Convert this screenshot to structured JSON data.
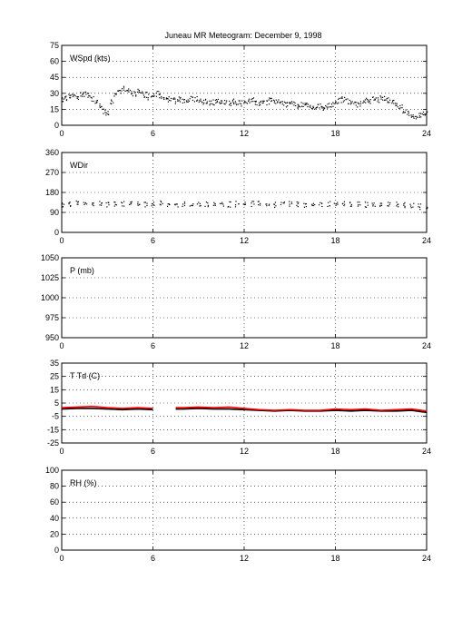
{
  "title": "Juneau MR Meteogram:  December  9, 1998",
  "chart_data": [
    {
      "type": "scatter",
      "label": "WSpd (kts)",
      "xlim": [
        0,
        24
      ],
      "ylim": [
        0,
        75
      ],
      "xticks": [
        0,
        6,
        12,
        18,
        24
      ],
      "yticks": [
        0,
        15,
        30,
        45,
        60,
        75
      ],
      "grid": true,
      "series": [
        {
          "color": "#000000",
          "x": [
            0,
            0.25,
            0.5,
            0.75,
            1,
            1.25,
            1.5,
            1.75,
            2,
            2.25,
            2.5,
            2.75,
            3,
            3.25,
            3.5,
            3.75,
            4,
            4.25,
            4.5,
            4.75,
            5,
            5.25,
            5.5,
            5.75,
            6,
            6.25,
            6.5,
            6.75,
            7,
            7.25,
            7.5,
            7.75,
            8,
            8.25,
            8.5,
            8.75,
            9,
            9.25,
            9.5,
            9.75,
            10,
            10.25,
            10.5,
            10.75,
            11,
            11.25,
            11.5,
            11.75,
            12,
            12.25,
            12.5,
            12.75,
            13,
            13.25,
            13.5,
            13.75,
            14,
            14.25,
            14.5,
            14.75,
            15,
            15.25,
            15.5,
            15.75,
            16,
            16.25,
            16.5,
            16.75,
            17,
            17.25,
            17.5,
            17.75,
            18,
            18.25,
            18.5,
            18.75,
            19,
            19.25,
            19.5,
            19.75,
            20,
            20.25,
            20.5,
            20.75,
            21,
            21.25,
            21.5,
            21.75,
            22,
            22.25,
            22.5,
            22.75,
            23,
            23.25,
            23.5,
            23.75,
            24
          ],
          "y": [
            25,
            26,
            27,
            28,
            26,
            29,
            30,
            28,
            25,
            22,
            18,
            14,
            12,
            22,
            30,
            33,
            35,
            34,
            32,
            30,
            33,
            31,
            29,
            27,
            28,
            30,
            27,
            26,
            25,
            24,
            23,
            25,
            24,
            23,
            26,
            25,
            24,
            22,
            23,
            21,
            22,
            24,
            23,
            22,
            21,
            23,
            22,
            21,
            22,
            23,
            24,
            22,
            21,
            23,
            22,
            24,
            23,
            22,
            21,
            20,
            22,
            21,
            19,
            20,
            21,
            18,
            17,
            19,
            18,
            17,
            19,
            20,
            22,
            24,
            25,
            23,
            22,
            21,
            20,
            22,
            24,
            23,
            25,
            24,
            26,
            25,
            24,
            23,
            20,
            17,
            14,
            12,
            9,
            8,
            10,
            11,
            12
          ]
        }
      ]
    },
    {
      "type": "scatter",
      "label": "WDir",
      "xlim": [
        0,
        24
      ],
      "ylim": [
        0,
        360
      ],
      "xticks": [
        0,
        6,
        12,
        18,
        24
      ],
      "yticks": [
        0,
        90,
        180,
        270,
        360
      ],
      "grid": true,
      "series": [
        {
          "color": "#000000",
          "x": [
            0,
            0.5,
            1,
            1.5,
            2,
            2.5,
            3,
            3.5,
            4,
            4.5,
            5,
            5.5,
            6,
            6.5,
            7,
            7.5,
            8,
            8.5,
            9,
            9.5,
            10,
            10.5,
            11,
            11.5,
            12,
            12.5,
            13,
            13.5,
            14,
            14.5,
            15,
            15.5,
            16,
            16.5,
            17,
            17.5,
            18,
            18.5,
            19,
            19.5,
            20,
            20.5,
            21,
            21.5,
            22,
            22.5,
            23,
            23.5,
            24
          ],
          "y": [
            128,
            130,
            132,
            130,
            128,
            131,
            129,
            127,
            130,
            132,
            128,
            130,
            131,
            133,
            130,
            129,
            130,
            128,
            131,
            129,
            130,
            132,
            128,
            130,
            129,
            131,
            130,
            128,
            127,
            129,
            131,
            130,
            128,
            126,
            129,
            130,
            132,
            131,
            129,
            128,
            127,
            130,
            131,
            129,
            128,
            126,
            125,
            118,
            112
          ]
        }
      ]
    },
    {
      "type": "line",
      "label": "P (mb)",
      "xlim": [
        0,
        24
      ],
      "ylim": [
        950,
        1050
      ],
      "xticks": [
        0,
        6,
        12,
        18,
        24
      ],
      "yticks": [
        950,
        975,
        1000,
        1025,
        1050
      ],
      "grid": true,
      "series": []
    },
    {
      "type": "line",
      "label": "T Td (C)",
      "xlim": [
        0,
        24
      ],
      "ylim": [
        -25,
        35
      ],
      "xticks": [
        0,
        6,
        12,
        18,
        24
      ],
      "yticks": [
        -25,
        -15,
        -5,
        5,
        15,
        25,
        35
      ],
      "grid": true,
      "series": [
        {
          "color": "#000000",
          "x": [
            0,
            1,
            2,
            3,
            4,
            5,
            6,
            7,
            7.5,
            8,
            9,
            10,
            11,
            12,
            13,
            14,
            15,
            16,
            17,
            18,
            19,
            20,
            21,
            22,
            23,
            24
          ],
          "y": [
            0.5,
            1,
            1,
            0.5,
            0,
            0.5,
            0,
            null,
            0.5,
            0.5,
            1,
            0.5,
            0.5,
            0,
            -0.5,
            -1,
            -0.5,
            -1,
            -1,
            -0.5,
            -1,
            -0.5,
            -1,
            -1,
            -0.5,
            -2
          ]
        },
        {
          "color": "#ff0000",
          "x": [
            0,
            1,
            2,
            3,
            4,
            5,
            6,
            7,
            7.5,
            8,
            9,
            10,
            11,
            12,
            13,
            14,
            15,
            16,
            17,
            18,
            19,
            20,
            21,
            22,
            23,
            24
          ],
          "y": [
            1.5,
            2,
            2.5,
            1.5,
            1,
            1.5,
            1,
            null,
            1.5,
            1.5,
            2,
            1.5,
            2,
            1,
            0,
            -0.5,
            0,
            -0.5,
            -0.5,
            0.5,
            0,
            0.5,
            -0.5,
            0,
            0.5,
            -1
          ]
        }
      ]
    },
    {
      "type": "line",
      "label": "RH (%)",
      "xlim": [
        0,
        24
      ],
      "ylim": [
        0,
        100
      ],
      "xticks": [
        0,
        6,
        12,
        18,
        24
      ],
      "yticks": [
        0,
        20,
        40,
        60,
        80,
        100
      ],
      "grid": true,
      "series": []
    }
  ]
}
